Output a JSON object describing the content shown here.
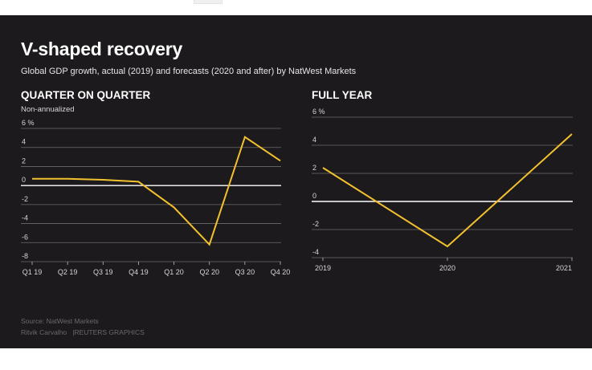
{
  "title": "V-shaped recovery",
  "subtitle": "Global GDP growth, actual (2019) and forecasts (2020 and after) by NatWest Markets",
  "colors": {
    "background": "#1c1a1c",
    "line": "#f2c12e",
    "grid": "#6c6c6c",
    "zero": "#ffffff"
  },
  "footer": {
    "source": "Source: NatWest Markets",
    "credit": "Ritvik Carvalho   |REUTERS GRAPHICS"
  },
  "chart_data": [
    {
      "type": "line",
      "title": "QUARTER ON QUARTER",
      "subtitle": "Non-annualized",
      "categories": [
        "Q1 19",
        "Q2 19",
        "Q3 19",
        "Q4 19",
        "Q1 20",
        "Q2 20",
        "Q3 20",
        "Q4 20"
      ],
      "series": [
        {
          "values": [
            0.7,
            0.7,
            0.6,
            0.4,
            -2.3,
            -6.2,
            5.1,
            2.6
          ]
        }
      ],
      "ylim": [
        -8,
        6
      ],
      "yticks": [
        6,
        4,
        2,
        0,
        -2,
        -4,
        -6,
        -8
      ],
      "ytick_labels": [
        "6 %",
        "4",
        "2",
        "0",
        "-2",
        "-4",
        "-6",
        "-8"
      ],
      "grid": true
    },
    {
      "type": "line",
      "title": "FULL YEAR",
      "categories": [
        "2019",
        "2020",
        "2021"
      ],
      "series": [
        {
          "values": [
            2.4,
            -3.2,
            4.8
          ]
        }
      ],
      "ylim": [
        -4,
        6
      ],
      "yticks": [
        6,
        4,
        2,
        0,
        -2,
        -4
      ],
      "ytick_labels": [
        "6 %",
        "4",
        "2",
        "0",
        "-2",
        "-4"
      ],
      "grid": true
    }
  ]
}
